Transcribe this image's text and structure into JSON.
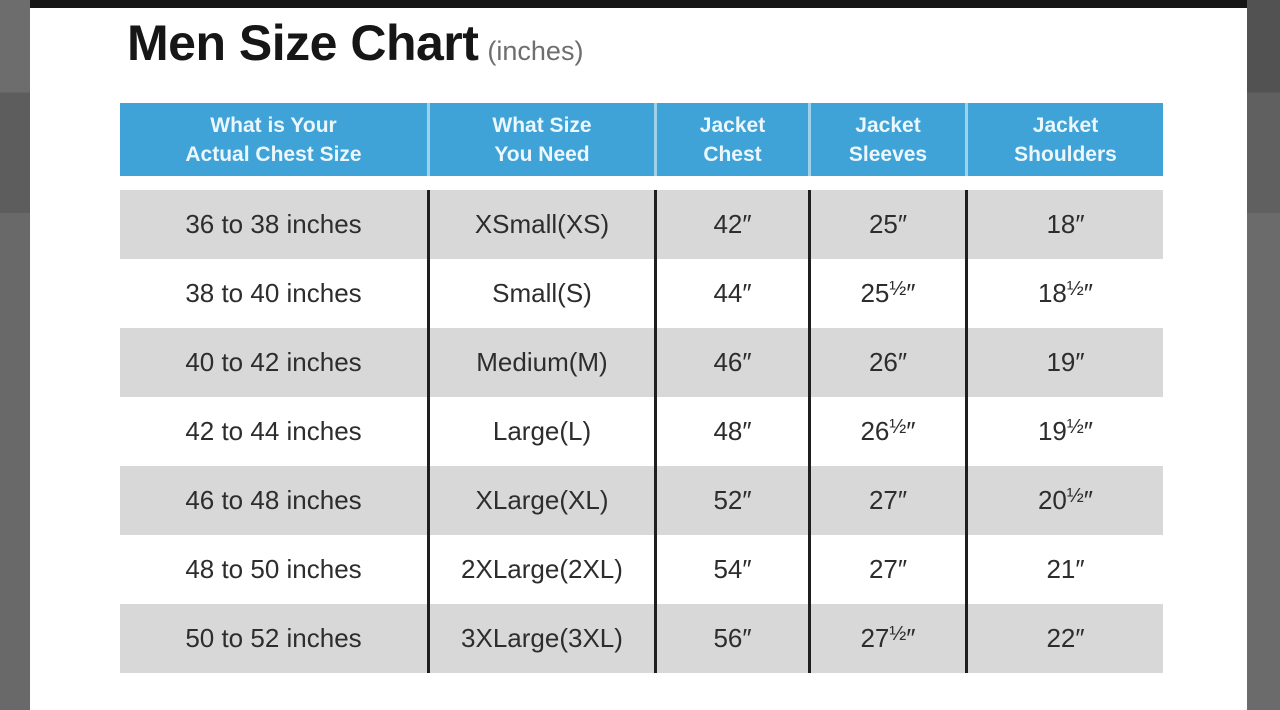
{
  "page": {
    "title": "Men Size Chart",
    "title_suffix": "(inches)"
  },
  "colors": {
    "header_bg": "#3FA3D7",
    "header_text": "#ECF7FD",
    "row_gray": "#D8D8D8",
    "row_white": "#FFFFFF",
    "column_line": "#1F1F1F",
    "body_text": "#2D2D2D",
    "top_strip": "#161616",
    "side_strip": "#656565"
  },
  "header": {
    "col1": [
      "What is Your",
      "Actual Chest Size"
    ],
    "col2": [
      "What Size",
      "You Need"
    ],
    "col3": [
      "Jacket",
      "Chest"
    ],
    "col4": [
      "Jacket",
      "Sleeves"
    ],
    "col5": [
      "Jacket",
      "Shoulders"
    ]
  },
  "chart_data": {
    "type": "table",
    "title": "Men Size Chart (inches)",
    "columns": [
      "What is Your Actual Chest Size",
      "What Size You Need",
      "Jacket Chest",
      "Jacket Sleeves",
      "Jacket Shoulders"
    ],
    "rows": [
      [
        "36 to 38 inches",
        "XSmall(XS)",
        "42″",
        "25″",
        "18″"
      ],
      [
        "38 to 40 inches",
        "Small(S)",
        "44″",
        "25½″",
        "18½″"
      ],
      [
        "40 to 42 inches",
        "Medium(M)",
        "46″",
        "26″",
        "19″"
      ],
      [
        "42 to 44 inches",
        "Large(L)",
        "48″",
        "26½″",
        "19½″"
      ],
      [
        "46 to 48 inches",
        "XLarge(XL)",
        "52″",
        "27″",
        "20½″"
      ],
      [
        "48 to 50 inches",
        "2XLarge(2XL)",
        "54″",
        "27″",
        "21″"
      ],
      [
        "50 to 52 inches",
        "3XLarge(3XL)",
        "56″",
        "27½″",
        "22″"
      ]
    ]
  }
}
